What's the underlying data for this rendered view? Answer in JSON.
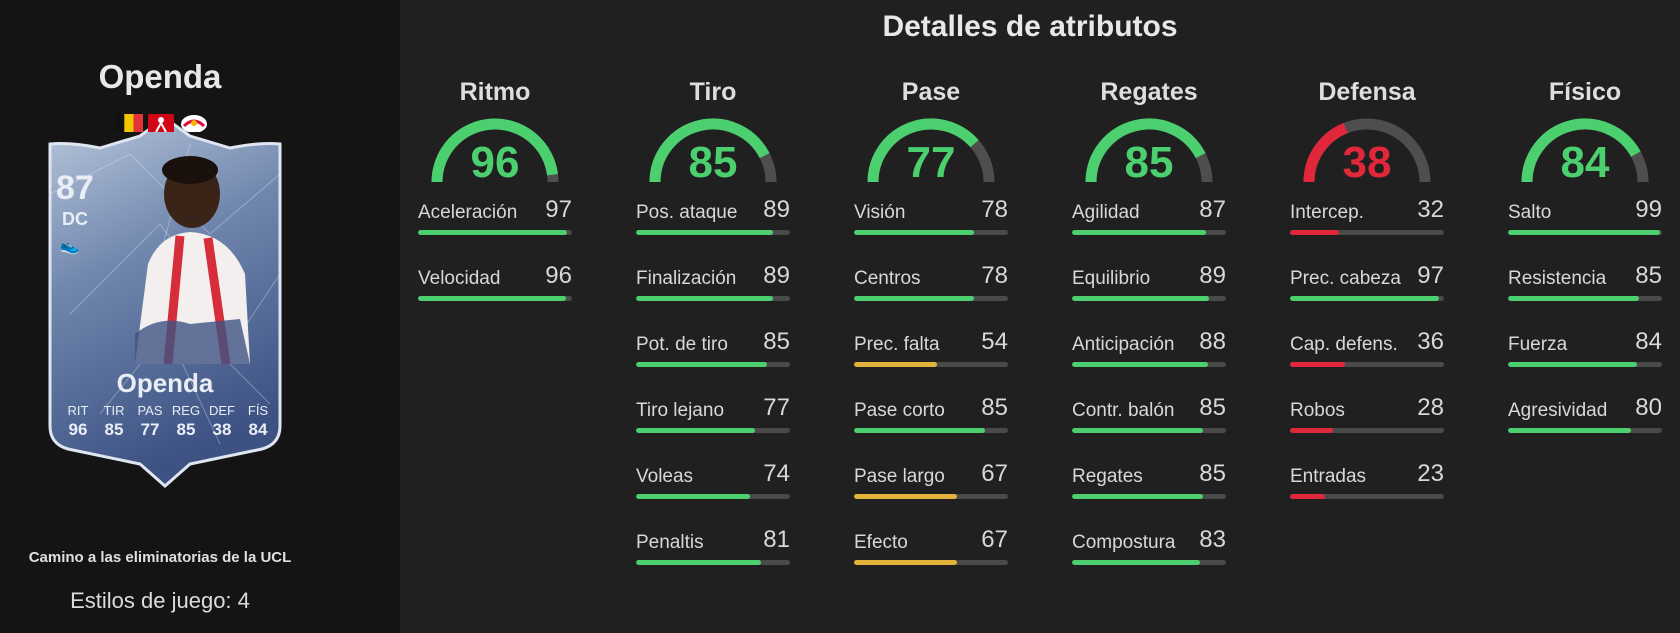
{
  "colors": {
    "green": "#4ccf6e",
    "yellow": "#e2b43c",
    "red": "#e0283a",
    "track": "#4a4a4a"
  },
  "player": {
    "name": "Openda",
    "card": {
      "rating": "87",
      "position": "DC",
      "name": "Openda",
      "stat_labels": [
        "RIT",
        "TIR",
        "PAS",
        "REG",
        "DEF",
        "FÍS"
      ],
      "stat_values": [
        "96",
        "85",
        "77",
        "85",
        "38",
        "84"
      ]
    },
    "event": "Camino a las eliminatorias de la UCL",
    "playstyles": "Estilos de juego: 4"
  },
  "title": "Detalles de atributos",
  "categories": [
    {
      "name": "Ritmo",
      "value": 96,
      "color": "green",
      "stats": [
        {
          "name": "Aceleración",
          "value": 97,
          "color": "green"
        },
        {
          "name": "Velocidad",
          "value": 96,
          "color": "green"
        }
      ]
    },
    {
      "name": "Tiro",
      "value": 85,
      "color": "green",
      "stats": [
        {
          "name": "Pos. ataque",
          "value": 89,
          "color": "green"
        },
        {
          "name": "Finalización",
          "value": 89,
          "color": "green"
        },
        {
          "name": "Pot. de tiro",
          "value": 85,
          "color": "green"
        },
        {
          "name": "Tiro lejano",
          "value": 77,
          "color": "green"
        },
        {
          "name": "Voleas",
          "value": 74,
          "color": "green"
        },
        {
          "name": "Penaltis",
          "value": 81,
          "color": "green"
        }
      ]
    },
    {
      "name": "Pase",
      "value": 77,
      "color": "green",
      "stats": [
        {
          "name": "Visión",
          "value": 78,
          "color": "green"
        },
        {
          "name": "Centros",
          "value": 78,
          "color": "green"
        },
        {
          "name": "Prec. falta",
          "value": 54,
          "color": "yellow"
        },
        {
          "name": "Pase corto",
          "value": 85,
          "color": "green"
        },
        {
          "name": "Pase largo",
          "value": 67,
          "color": "yellow"
        },
        {
          "name": "Efecto",
          "value": 67,
          "color": "yellow"
        }
      ]
    },
    {
      "name": "Regates",
      "value": 85,
      "color": "green",
      "stats": [
        {
          "name": "Agilidad",
          "value": 87,
          "color": "green"
        },
        {
          "name": "Equilibrio",
          "value": 89,
          "color": "green"
        },
        {
          "name": "Anticipación",
          "value": 88,
          "color": "green"
        },
        {
          "name": "Contr. balón",
          "value": 85,
          "color": "green"
        },
        {
          "name": "Regates",
          "value": 85,
          "color": "green"
        },
        {
          "name": "Compostura",
          "value": 83,
          "color": "green"
        }
      ]
    },
    {
      "name": "Defensa",
      "value": 38,
      "color": "red",
      "stats": [
        {
          "name": "Intercep.",
          "value": 32,
          "color": "red"
        },
        {
          "name": "Prec. cabeza",
          "value": 97,
          "color": "green"
        },
        {
          "name": "Cap. defens.",
          "value": 36,
          "color": "red"
        },
        {
          "name": "Robos",
          "value": 28,
          "color": "red"
        },
        {
          "name": "Entradas",
          "value": 23,
          "color": "red"
        }
      ]
    },
    {
      "name": "Físico",
      "value": 84,
      "color": "green",
      "stats": [
        {
          "name": "Salto",
          "value": 99,
          "color": "green"
        },
        {
          "name": "Resistencia",
          "value": 85,
          "color": "green"
        },
        {
          "name": "Fuerza",
          "value": 84,
          "color": "green"
        },
        {
          "name": "Agresividad",
          "value": 80,
          "color": "green"
        }
      ]
    }
  ]
}
